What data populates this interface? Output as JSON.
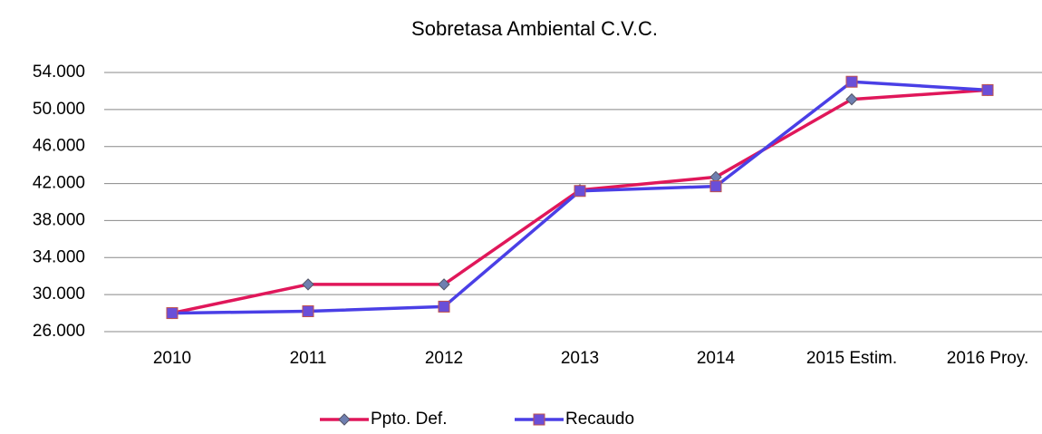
{
  "chart_data": {
    "type": "line",
    "title": "Sobretasa  Ambiental C.V.C.",
    "categories": [
      "2010",
      "2011",
      "2012",
      "2013",
      "2014",
      "2015 Estim.",
      "2016 Proy."
    ],
    "series": [
      {
        "name": "Ppto. Def.",
        "color": "#e0175a",
        "marker": "diamond",
        "marker_color": "#6f7fb0",
        "values": [
          28000,
          31100,
          31100,
          41300,
          42700,
          51100,
          52100
        ]
      },
      {
        "name": "Recaudo",
        "color": "#4a3fe6",
        "marker": "square",
        "marker_color": "#6a4fd8",
        "values": [
          28000,
          28200,
          28700,
          41200,
          41700,
          53000,
          52100
        ]
      }
    ],
    "ylim": [
      26000,
      54000
    ],
    "yticks": [
      {
        "value": 26000,
        "label": "26.000"
      },
      {
        "value": 30000,
        "label": "30.000"
      },
      {
        "value": 34000,
        "label": "34.000"
      },
      {
        "value": 38000,
        "label": "38.000"
      },
      {
        "value": 42000,
        "label": "42.000"
      },
      {
        "value": 46000,
        "label": "46.000"
      },
      {
        "value": 50000,
        "label": "50.000"
      },
      {
        "value": 54000,
        "label": "54.000"
      }
    ],
    "grid": true,
    "legend": "bottom"
  }
}
